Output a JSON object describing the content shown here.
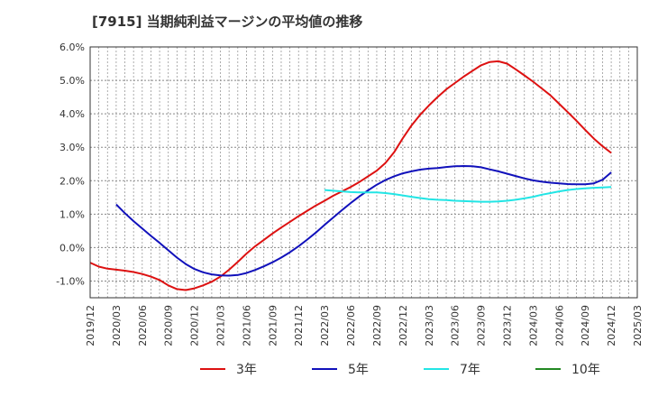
{
  "chart_data": {
    "type": "line",
    "title": "[7915]  当期純利益マージンの平均値の推移",
    "xlabel": "",
    "ylabel": "",
    "ylim": [
      -1.5,
      6.0
    ],
    "y_ticks": [
      "6.0%",
      "5.0%",
      "4.0%",
      "3.0%",
      "2.0%",
      "1.0%",
      "0.0%",
      "-1.0%"
    ],
    "y_tick_values": [
      6.0,
      5.0,
      4.0,
      3.0,
      2.0,
      1.0,
      0.0,
      -1.0
    ],
    "x_ticks": [
      "2019/12",
      "2020/03",
      "2020/06",
      "2020/09",
      "2020/12",
      "2021/03",
      "2021/06",
      "2021/09",
      "2021/12",
      "2022/03",
      "2022/06",
      "2022/09",
      "2022/12",
      "2023/03",
      "2023/06",
      "2023/09",
      "2023/12",
      "2024/03",
      "2024/06",
      "2024/09",
      "2024/12",
      "2025/03"
    ],
    "x_range": [
      "2019/12",
      "2025/03"
    ],
    "grid": true,
    "legend_position": "bottom",
    "series": [
      {
        "name": "3年",
        "color": "#dd1111",
        "points": [
          [
            "2019/12",
            -0.45
          ],
          [
            "2020/01",
            -0.57
          ],
          [
            "2020/02",
            -0.63
          ],
          [
            "2020/03",
            -0.66
          ],
          [
            "2020/04",
            -0.69
          ],
          [
            "2020/05",
            -0.73
          ],
          [
            "2020/06",
            -0.79
          ],
          [
            "2020/07",
            -0.87
          ],
          [
            "2020/08",
            -0.97
          ],
          [
            "2020/09",
            -1.13
          ],
          [
            "2020/10",
            -1.24
          ],
          [
            "2020/11",
            -1.27
          ],
          [
            "2020/12",
            -1.22
          ],
          [
            "2021/01",
            -1.13
          ],
          [
            "2021/02",
            -1.02
          ],
          [
            "2021/03",
            -0.87
          ],
          [
            "2021/04",
            -0.66
          ],
          [
            "2021/05",
            -0.43
          ],
          [
            "2021/06",
            -0.18
          ],
          [
            "2021/07",
            0.04
          ],
          [
            "2021/08",
            0.23
          ],
          [
            "2021/09",
            0.42
          ],
          [
            "2021/10",
            0.6
          ],
          [
            "2021/11",
            0.77
          ],
          [
            "2021/12",
            0.94
          ],
          [
            "2022/01",
            1.1
          ],
          [
            "2022/02",
            1.26
          ],
          [
            "2022/03",
            1.4
          ],
          [
            "2022/04",
            1.55
          ],
          [
            "2022/05",
            1.68
          ],
          [
            "2022/06",
            1.81
          ],
          [
            "2022/07",
            1.96
          ],
          [
            "2022/08",
            2.13
          ],
          [
            "2022/09",
            2.3
          ],
          [
            "2022/10",
            2.53
          ],
          [
            "2022/11",
            2.85
          ],
          [
            "2022/12",
            3.27
          ],
          [
            "2023/01",
            3.65
          ],
          [
            "2023/02",
            3.97
          ],
          [
            "2023/03",
            4.25
          ],
          [
            "2023/04",
            4.5
          ],
          [
            "2023/05",
            4.73
          ],
          [
            "2023/06",
            4.92
          ],
          [
            "2023/07",
            5.11
          ],
          [
            "2023/08",
            5.28
          ],
          [
            "2023/09",
            5.45
          ],
          [
            "2023/10",
            5.55
          ],
          [
            "2023/11",
            5.57
          ],
          [
            "2023/12",
            5.5
          ],
          [
            "2024/01",
            5.33
          ],
          [
            "2024/02",
            5.15
          ],
          [
            "2024/03",
            4.96
          ],
          [
            "2024/04",
            4.76
          ],
          [
            "2024/05",
            4.55
          ],
          [
            "2024/06",
            4.3
          ],
          [
            "2024/07",
            4.05
          ],
          [
            "2024/08",
            3.79
          ],
          [
            "2024/09",
            3.52
          ],
          [
            "2024/10",
            3.26
          ],
          [
            "2024/11",
            3.03
          ],
          [
            "2024/12",
            2.83
          ]
        ]
      },
      {
        "name": "5年",
        "color": "#1111bb",
        "points": [
          [
            "2020/03",
            1.29
          ],
          [
            "2020/04",
            1.03
          ],
          [
            "2020/05",
            0.79
          ],
          [
            "2020/06",
            0.57
          ],
          [
            "2020/07",
            0.35
          ],
          [
            "2020/08",
            0.14
          ],
          [
            "2020/09",
            -0.08
          ],
          [
            "2020/10",
            -0.3
          ],
          [
            "2020/11",
            -0.49
          ],
          [
            "2020/12",
            -0.64
          ],
          [
            "2021/01",
            -0.74
          ],
          [
            "2021/02",
            -0.8
          ],
          [
            "2021/03",
            -0.83
          ],
          [
            "2021/04",
            -0.84
          ],
          [
            "2021/05",
            -0.82
          ],
          [
            "2021/06",
            -0.76
          ],
          [
            "2021/07",
            -0.67
          ],
          [
            "2021/08",
            -0.56
          ],
          [
            "2021/09",
            -0.44
          ],
          [
            "2021/10",
            -0.3
          ],
          [
            "2021/11",
            -0.14
          ],
          [
            "2021/12",
            0.04
          ],
          [
            "2022/01",
            0.24
          ],
          [
            "2022/02",
            0.45
          ],
          [
            "2022/03",
            0.68
          ],
          [
            "2022/04",
            0.9
          ],
          [
            "2022/05",
            1.12
          ],
          [
            "2022/06",
            1.33
          ],
          [
            "2022/07",
            1.53
          ],
          [
            "2022/08",
            1.71
          ],
          [
            "2022/09",
            1.88
          ],
          [
            "2022/10",
            2.02
          ],
          [
            "2022/11",
            2.13
          ],
          [
            "2022/12",
            2.22
          ],
          [
            "2023/01",
            2.28
          ],
          [
            "2023/02",
            2.33
          ],
          [
            "2023/03",
            2.36
          ],
          [
            "2023/04",
            2.38
          ],
          [
            "2023/05",
            2.41
          ],
          [
            "2023/06",
            2.43
          ],
          [
            "2023/07",
            2.44
          ],
          [
            "2023/08",
            2.43
          ],
          [
            "2023/09",
            2.4
          ],
          [
            "2023/10",
            2.34
          ],
          [
            "2023/11",
            2.28
          ],
          [
            "2023/12",
            2.21
          ],
          [
            "2024/01",
            2.14
          ],
          [
            "2024/02",
            2.07
          ],
          [
            "2024/03",
            2.01
          ],
          [
            "2024/04",
            1.97
          ],
          [
            "2024/05",
            1.94
          ],
          [
            "2024/06",
            1.92
          ],
          [
            "2024/07",
            1.9
          ],
          [
            "2024/08",
            1.89
          ],
          [
            "2024/09",
            1.89
          ],
          [
            "2024/10",
            1.92
          ],
          [
            "2024/11",
            2.03
          ],
          [
            "2024/12",
            2.25
          ]
        ]
      },
      {
        "name": "7年",
        "color": "#22e5e5",
        "points": [
          [
            "2022/03",
            1.72
          ],
          [
            "2022/04",
            1.7
          ],
          [
            "2022/05",
            1.68
          ],
          [
            "2022/06",
            1.66
          ],
          [
            "2022/07",
            1.65
          ],
          [
            "2022/08",
            1.65
          ],
          [
            "2022/09",
            1.65
          ],
          [
            "2022/10",
            1.63
          ],
          [
            "2022/11",
            1.6
          ],
          [
            "2022/12",
            1.56
          ],
          [
            "2023/01",
            1.52
          ],
          [
            "2023/02",
            1.48
          ],
          [
            "2023/03",
            1.45
          ],
          [
            "2023/04",
            1.43
          ],
          [
            "2023/05",
            1.42
          ],
          [
            "2023/06",
            1.4
          ],
          [
            "2023/07",
            1.39
          ],
          [
            "2023/08",
            1.38
          ],
          [
            "2023/09",
            1.37
          ],
          [
            "2023/10",
            1.37
          ],
          [
            "2023/11",
            1.38
          ],
          [
            "2023/12",
            1.4
          ],
          [
            "2024/01",
            1.43
          ],
          [
            "2024/02",
            1.47
          ],
          [
            "2024/03",
            1.52
          ],
          [
            "2024/04",
            1.58
          ],
          [
            "2024/05",
            1.63
          ],
          [
            "2024/06",
            1.68
          ],
          [
            "2024/07",
            1.72
          ],
          [
            "2024/08",
            1.75
          ],
          [
            "2024/09",
            1.77
          ],
          [
            "2024/10",
            1.79
          ],
          [
            "2024/11",
            1.8
          ],
          [
            "2024/12",
            1.81
          ]
        ]
      },
      {
        "name": "10年",
        "color": "#228822",
        "points": []
      }
    ]
  }
}
